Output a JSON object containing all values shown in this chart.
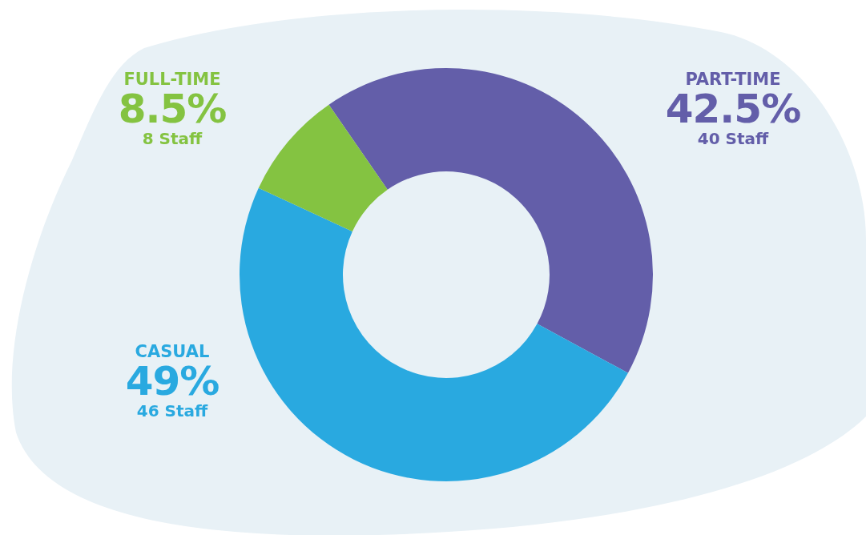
{
  "chart_data": {
    "type": "donut",
    "categories": [
      "PART-TIME",
      "CASUAL",
      "FULL-TIME"
    ],
    "values": [
      42.5,
      49,
      8.5
    ],
    "colors": [
      "#635ea9",
      "#29a9e0",
      "#84c341"
    ],
    "value_labels": [
      "42.5%",
      "49%",
      "8.5%"
    ],
    "annotations": [
      "40 Staff",
      "46 Staff",
      "8 Staff"
    ]
  }
}
